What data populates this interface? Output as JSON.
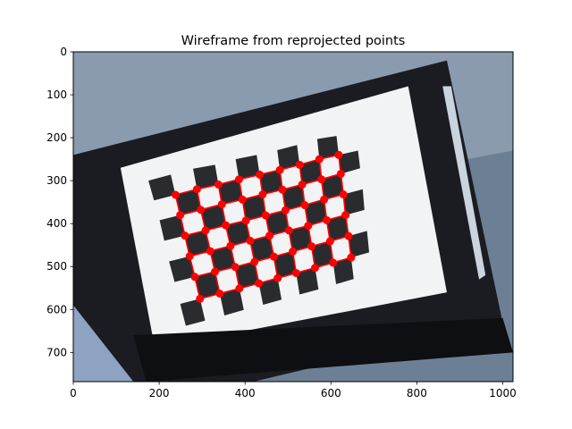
{
  "figure": {
    "background": "#ffffff"
  },
  "chart_data": {
    "type": "scatter",
    "title": "Wireframe from reprojected points",
    "xlabel": "",
    "ylabel": "",
    "xlim": [
      0,
      1024
    ],
    "ylim": [
      768,
      0
    ],
    "y_inverted": true,
    "x_ticks": [
      0,
      200,
      400,
      600,
      800,
      1000
    ],
    "y_ticks": [
      0,
      100,
      200,
      300,
      400,
      500,
      600,
      700
    ],
    "grid": false,
    "legend": "none",
    "background_image": "photo of a laptop screen showing a black-and-white checkerboard calibration pattern",
    "series": [
      {
        "marker_color": "#ff0000",
        "line_color": "#ff0000",
        "marker": "circle",
        "grid_rows": 6,
        "grid_cols": 9,
        "points": [
          [
            [
              238,
              333
            ],
            [
              288,
              320
            ],
            [
              338,
              309
            ],
            [
              386,
              297
            ],
            [
              434,
              286
            ],
            [
              481,
              275
            ],
            [
              527,
              263
            ],
            [
              573,
              250
            ],
            [
              618,
              240
            ]
          ],
          [
            [
              249,
              380
            ],
            [
              297,
              368
            ],
            [
              346,
              355
            ],
            [
              394,
              344
            ],
            [
              441,
              332
            ],
            [
              487,
              321
            ],
            [
              533,
              309
            ],
            [
              578,
              297
            ],
            [
              623,
              284
            ]
          ],
          [
            [
              260,
              428
            ],
            [
              308,
              416
            ],
            [
              355,
              404
            ],
            [
              402,
              393
            ],
            [
              448,
              381
            ],
            [
              494,
              369
            ],
            [
              539,
              357
            ],
            [
              584,
              344
            ],
            [
              629,
              332
            ]
          ],
          [
            [
              271,
              476
            ],
            [
              319,
              464
            ],
            [
              366,
              452
            ],
            [
              412,
              440
            ],
            [
              457,
              428
            ],
            [
              502,
              416
            ],
            [
              547,
              405
            ],
            [
              590,
              392
            ],
            [
              634,
              380
            ]
          ],
          [
            [
              283,
              524
            ],
            [
              330,
              512
            ],
            [
              377,
              501
            ],
            [
              422,
              489
            ],
            [
              467,
              477
            ],
            [
              511,
              465
            ],
            [
              555,
              453
            ],
            [
              598,
              441
            ],
            [
              641,
              429
            ]
          ],
          [
            [
              295,
              575
            ],
            [
              341,
              563
            ],
            [
              387,
              551
            ],
            [
              432,
              539
            ],
            [
              476,
              527
            ],
            [
              519,
              515
            ],
            [
              563,
              503
            ],
            [
              605,
              491
            ],
            [
              647,
              479
            ]
          ]
        ]
      }
    ]
  }
}
